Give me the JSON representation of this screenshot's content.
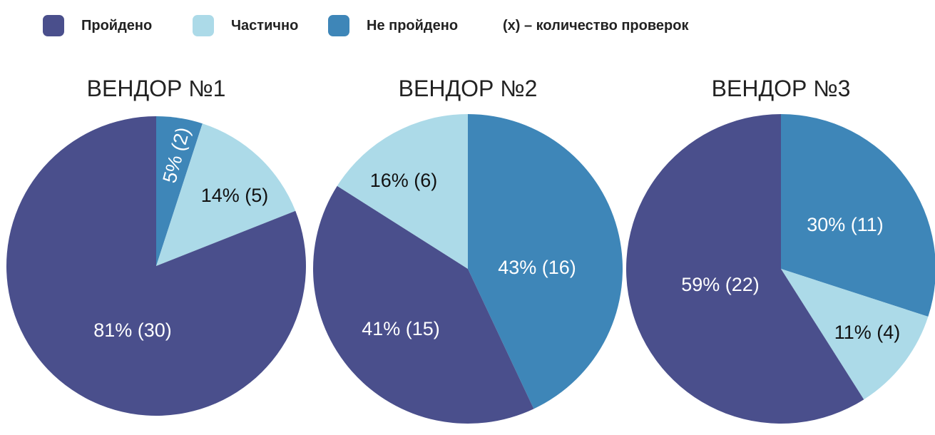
{
  "legend": {
    "items": [
      {
        "label": "Пройдено",
        "color": "#4a4f8c"
      },
      {
        "label": "Частично",
        "color": "#acdae8"
      },
      {
        "label": "Не пройдено",
        "color": "#3e86b8"
      }
    ],
    "note": "(x) – количество проверок"
  },
  "chart_data": [
    {
      "type": "pie",
      "title": "ВЕНДОР №1",
      "slices": [
        {
          "category": "Не пройдено",
          "percent": 5,
          "count": 2,
          "label": "5% (2)",
          "color": "#3e86b8"
        },
        {
          "category": "Частично",
          "percent": 14,
          "count": 5,
          "label": "14% (5)",
          "color": "#acdae8"
        },
        {
          "category": "Пройдено",
          "percent": 81,
          "count": 30,
          "label": "81% (30)",
          "color": "#4a4f8c"
        }
      ]
    },
    {
      "type": "pie",
      "title": "ВЕНДОР №2",
      "slices": [
        {
          "category": "Не пройдено",
          "percent": 43,
          "count": 16,
          "label": "43% (16)",
          "color": "#3e86b8"
        },
        {
          "category": "Пройдено",
          "percent": 41,
          "count": 15,
          "label": "41% (15)",
          "color": "#4a4f8c"
        },
        {
          "category": "Частично",
          "percent": 16,
          "count": 6,
          "label": "16% (6)",
          "color": "#acdae8"
        }
      ]
    },
    {
      "type": "pie",
      "title": "ВЕНДОР №3",
      "slices": [
        {
          "category": "Не пройдено",
          "percent": 30,
          "count": 11,
          "label": "30% (11)",
          "color": "#3e86b8"
        },
        {
          "category": "Частично",
          "percent": 11,
          "count": 4,
          "label": "11% (4)",
          "color": "#acdae8"
        },
        {
          "category": "Пройдено",
          "percent": 59,
          "count": 22,
          "label": "59% (22)",
          "color": "#4a4f8c"
        }
      ]
    }
  ]
}
